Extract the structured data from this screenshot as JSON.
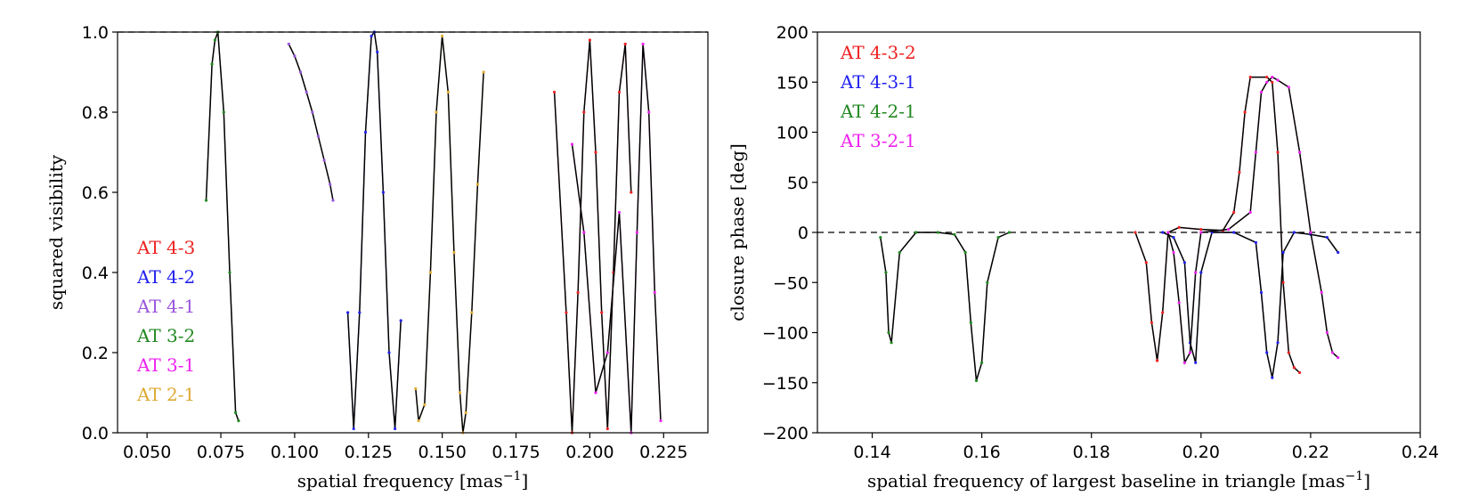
{
  "chart_data": [
    {
      "type": "line",
      "xlabel": "spatial frequency [mas",
      "xlabel_sup": "−1",
      "xlabel_end": "]",
      "ylabel": "squared visibility",
      "xlim": [
        0.04,
        0.24
      ],
      "ylim": [
        0.0,
        1.0
      ],
      "xticks": [
        "0.050",
        "0.075",
        "0.100",
        "0.125",
        "0.150",
        "0.175",
        "0.200",
        "0.225"
      ],
      "xtick_values": [
        0.05,
        0.075,
        0.1,
        0.125,
        0.15,
        0.175,
        0.2,
        0.225
      ],
      "yticks": [
        "0.0",
        "0.2",
        "0.4",
        "0.6",
        "0.8",
        "1.0"
      ],
      "ytick_values": [
        0.0,
        0.2,
        0.4,
        0.6,
        0.8,
        1.0
      ],
      "reference_line_y": 1.0,
      "legend_position": "lower-left",
      "series": [
        {
          "name": "AT 4-3",
          "color": "#ee2222",
          "model_color": "#000000",
          "x": [
            0.188,
            0.192,
            0.194,
            0.196,
            0.198,
            0.2,
            0.202,
            0.204,
            0.206,
            0.208,
            0.21,
            0.212,
            0.214
          ],
          "y": [
            0.85,
            0.3,
            0.0,
            0.35,
            0.8,
            0.98,
            0.7,
            0.3,
            0.01,
            0.4,
            0.85,
            0.97,
            0.6
          ]
        },
        {
          "name": "AT 4-2",
          "color": "#2222ee",
          "x": [
            0.118,
            0.12,
            0.122,
            0.124,
            0.126,
            0.127,
            0.128,
            0.13,
            0.132,
            0.134,
            0.136
          ],
          "y": [
            0.3,
            0.01,
            0.3,
            0.75,
            0.99,
            1.0,
            0.95,
            0.6,
            0.2,
            0.01,
            0.28
          ]
        },
        {
          "name": "AT 4-1",
          "color": "#9955dd",
          "x": [
            0.098,
            0.1,
            0.102,
            0.104,
            0.106,
            0.108,
            0.11,
            0.112,
            0.113
          ],
          "y": [
            0.97,
            0.94,
            0.9,
            0.85,
            0.8,
            0.74,
            0.68,
            0.62,
            0.58
          ]
        },
        {
          "name": "AT 3-2",
          "color": "#228822",
          "x": [
            0.07,
            0.072,
            0.073,
            0.074,
            0.076,
            0.078,
            0.08,
            0.081
          ],
          "y": [
            0.58,
            0.92,
            0.98,
            1.0,
            0.8,
            0.4,
            0.05,
            0.03
          ]
        },
        {
          "name": "AT 3-1",
          "color": "#ee22ee",
          "x": [
            0.194,
            0.198,
            0.202,
            0.206,
            0.21,
            0.214,
            0.216,
            0.218,
            0.22,
            0.222,
            0.224
          ],
          "y": [
            0.72,
            0.5,
            0.1,
            0.2,
            0.55,
            0.0,
            0.5,
            0.97,
            0.8,
            0.35,
            0.03
          ]
        },
        {
          "name": "AT 2-1",
          "color": "#ddaa33",
          "x": [
            0.141,
            0.142,
            0.144,
            0.146,
            0.148,
            0.15,
            0.152,
            0.154,
            0.156,
            0.157,
            0.158,
            0.16,
            0.162,
            0.164
          ],
          "y": [
            0.11,
            0.03,
            0.07,
            0.4,
            0.8,
            0.99,
            0.85,
            0.45,
            0.1,
            0.0,
            0.05,
            0.3,
            0.62,
            0.9
          ]
        }
      ]
    },
    {
      "type": "line",
      "xlabel": "spatial frequency of largest baseline in triangle [mas",
      "xlabel_sup": "−1",
      "xlabel_end": "]",
      "ylabel": "closure phase [deg]",
      "xlim": [
        0.13,
        0.24
      ],
      "ylim": [
        -200,
        200
      ],
      "xticks": [
        "0.14",
        "0.16",
        "0.18",
        "0.20",
        "0.22",
        "0.24"
      ],
      "xtick_values": [
        0.14,
        0.16,
        0.18,
        0.2,
        0.22,
        0.24
      ],
      "yticks": [
        "−200",
        "−150",
        "−100",
        "−50",
        "0",
        "50",
        "100",
        "150",
        "200"
      ],
      "ytick_values": [
        -200,
        -150,
        -100,
        -50,
        0,
        50,
        100,
        150,
        200
      ],
      "reference_line_y": 0,
      "legend_position": "upper-left",
      "series": [
        {
          "name": "AT 4-3-2",
          "color": "#ee2222",
          "x": [
            0.188,
            0.19,
            0.191,
            0.192,
            0.193,
            0.194,
            0.196,
            0.2,
            0.204,
            0.206,
            0.207,
            0.208,
            0.209,
            0.212,
            0.213,
            0.214,
            0.215,
            0.216,
            0.217,
            0.218
          ],
          "y": [
            0,
            -30,
            -90,
            -128,
            -80,
            0,
            5,
            3,
            2,
            20,
            60,
            120,
            155,
            155,
            150,
            80,
            -50,
            -120,
            -135,
            -140
          ]
        },
        {
          "name": "AT 4-3-1",
          "color": "#2222ee",
          "x": [
            0.193,
            0.195,
            0.197,
            0.198,
            0.199,
            0.2,
            0.202,
            0.206,
            0.21,
            0.211,
            0.212,
            0.213,
            0.214,
            0.215,
            0.217,
            0.22,
            0.223,
            0.225
          ],
          "y": [
            0,
            -5,
            -30,
            -110,
            -130,
            -40,
            0,
            0,
            -10,
            -60,
            -120,
            -145,
            -110,
            -20,
            0,
            -2,
            -5,
            -20
          ]
        },
        {
          "name": "AT 4-2-1",
          "color": "#228822",
          "x": [
            0.1415,
            0.1425,
            0.143,
            0.1435,
            0.145,
            0.148,
            0.152,
            0.155,
            0.157,
            0.158,
            0.159,
            0.16,
            0.161,
            0.163,
            0.165
          ],
          "y": [
            -5,
            -40,
            -100,
            -110,
            -20,
            0,
            0,
            -2,
            -20,
            -90,
            -148,
            -130,
            -50,
            -5,
            0
          ]
        },
        {
          "name": "AT 3-2-1",
          "color": "#ee22ee",
          "x": [
            0.194,
            0.195,
            0.196,
            0.197,
            0.198,
            0.199,
            0.2,
            0.205,
            0.209,
            0.21,
            0.211,
            0.212,
            0.213,
            0.214,
            0.216,
            0.218,
            0.22,
            0.222,
            0.223,
            0.224,
            0.225
          ],
          "y": [
            0,
            -20,
            -70,
            -130,
            -120,
            -40,
            0,
            3,
            20,
            80,
            140,
            150,
            155,
            152,
            145,
            80,
            0,
            -60,
            -100,
            -120,
            -125
          ]
        }
      ]
    }
  ]
}
